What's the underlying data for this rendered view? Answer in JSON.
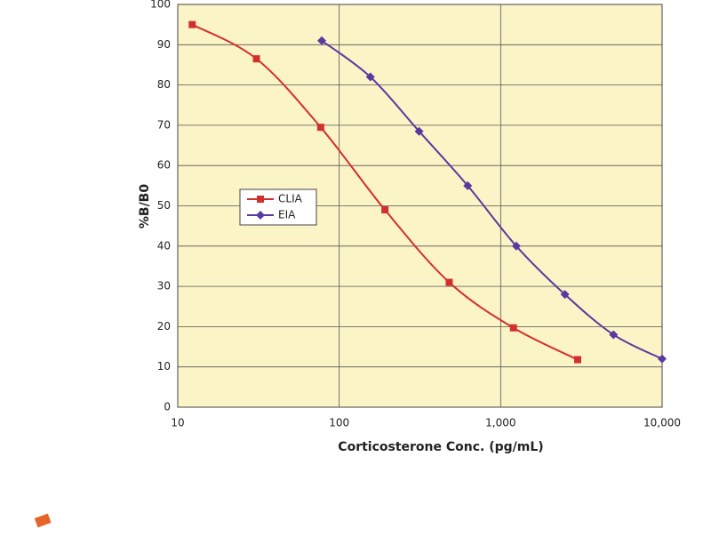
{
  "chart_data": {
    "type": "line",
    "x_label": "Corticosterone Conc. (pg/mL)",
    "y_label": "%B/B0",
    "xscale": "log",
    "xlim": [
      10,
      10000
    ],
    "xticks": [
      10,
      100,
      {
        "value": 1000,
        "label": "1,000"
      },
      {
        "value": 10000,
        "label": "10,000"
      }
    ],
    "ylim": [
      0,
      100
    ],
    "yticks": [
      0,
      10,
      20,
      30,
      40,
      50,
      60,
      70,
      80,
      90,
      100
    ],
    "grid": true,
    "legend": "center-left",
    "series": [
      {
        "name": "CLIA",
        "color": "#d42f2f",
        "marker": "square",
        "x": [
          12.29,
          30.72,
          76.8,
          192,
          480,
          1200,
          3000
        ],
        "values": [
          95,
          86.5,
          69.5,
          49,
          31,
          19.7,
          11.8
        ]
      },
      {
        "name": "EIA",
        "color": "#5a3aa0",
        "marker": "diamond",
        "x": [
          78,
          156,
          312.5,
          625,
          1250,
          2500,
          5000,
          10000
        ],
        "values": [
          91,
          82,
          68.5,
          55,
          40,
          28,
          18,
          12
        ]
      }
    ]
  }
}
